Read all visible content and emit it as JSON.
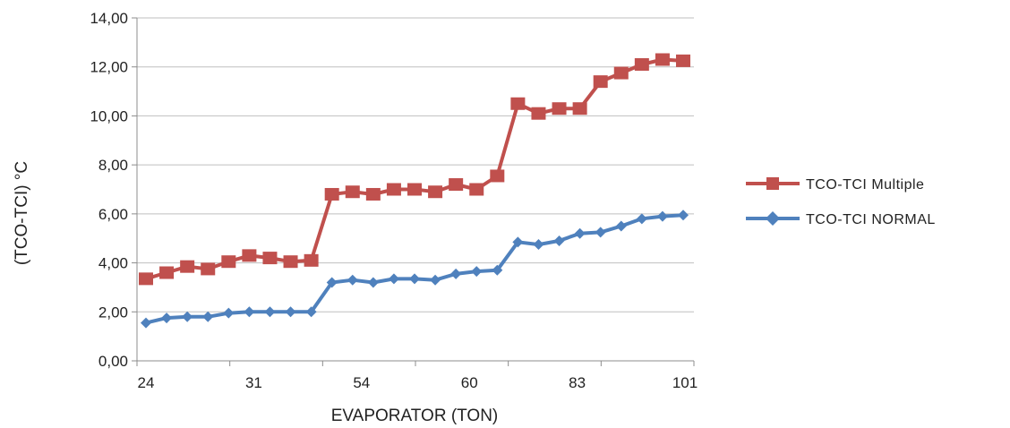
{
  "chart_data": {
    "type": "line",
    "xlabel": "EVAPORATOR (TON)",
    "ylabel": "(TCO-TCI) °C",
    "ylim": [
      0,
      14
    ],
    "yticks": [
      "0,00",
      "2,00",
      "4,00",
      "6,00",
      "8,00",
      "10,00",
      "12,00",
      "14,00"
    ],
    "xtick_labels": [
      "24",
      "31",
      "54",
      "60",
      "83",
      "101"
    ],
    "grid": "horizontal",
    "legend_position": "right",
    "series": [
      {
        "name": "TCO-TCI Multiple",
        "color": "#c0504d",
        "marker": "square",
        "values": [
          3.35,
          3.6,
          3.85,
          3.75,
          4.05,
          4.3,
          4.2,
          4.05,
          4.1,
          6.8,
          6.9,
          6.8,
          7.0,
          7.0,
          6.9,
          7.2,
          7.0,
          7.55,
          10.5,
          10.1,
          10.3,
          10.3,
          11.4,
          11.75,
          12.1,
          12.3,
          12.25
        ]
      },
      {
        "name": "TCO-TCI NORMAL",
        "color": "#4f81bd",
        "marker": "diamond",
        "values": [
          1.55,
          1.75,
          1.8,
          1.8,
          1.95,
          2.0,
          2.0,
          2.0,
          2.0,
          3.2,
          3.3,
          3.2,
          3.35,
          3.35,
          3.3,
          3.55,
          3.65,
          3.7,
          4.85,
          4.75,
          4.9,
          5.2,
          5.25,
          5.5,
          5.8,
          5.9,
          5.95
        ]
      }
    ]
  }
}
